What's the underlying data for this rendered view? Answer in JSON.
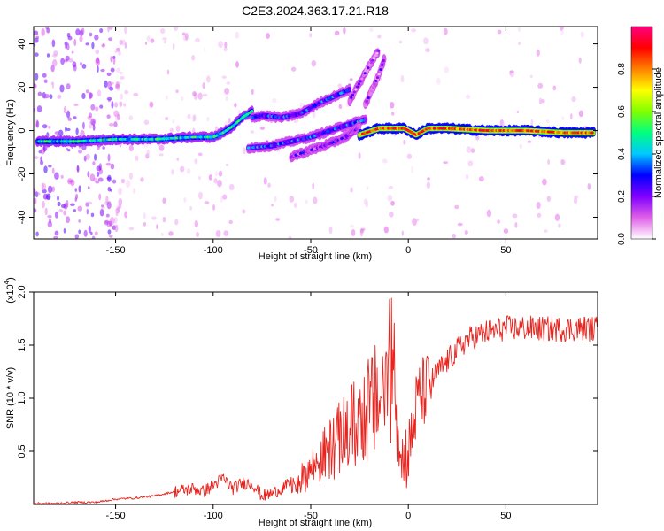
{
  "figure": {
    "title": "C2E3.2024.363.17.21.R18"
  },
  "chart_data": [
    {
      "type": "heatmap",
      "xlabel": "Height of straight line (km)",
      "ylabel": "Frequency (Hz)",
      "xlim": [
        -192,
        97
      ],
      "ylim": [
        -50,
        48
      ],
      "x_ticks": [
        -150,
        -100,
        -50,
        0,
        50
      ],
      "y_ticks": [
        -40,
        -20,
        0,
        20,
        40
      ],
      "colorbar": {
        "label": "Normalized spectral amplitude",
        "range": [
          0,
          1
        ],
        "ticks": [
          0.0,
          0.2,
          0.4,
          0.6,
          0.8
        ],
        "colormap": [
          "#ffffff",
          "#e060e8",
          "#8000ff",
          "#0000ff",
          "#00c8ff",
          "#00ff80",
          "#80ff00",
          "#ffff00",
          "#ff8000",
          "#ff0000",
          "#ff0080"
        ]
      },
      "ridges": [
        {
          "x": [
            -190,
            -170,
            -150,
            -130,
            -110,
            -100,
            -95,
            -90,
            -85,
            -80
          ],
          "y": [
            -5,
            -5,
            -4,
            -4,
            -3,
            -3,
            -1,
            2,
            6,
            9
          ],
          "amplitude": 0.45
        },
        {
          "x": [
            -80,
            -75,
            -65,
            -55,
            -45,
            -40,
            -35,
            -30
          ],
          "y": [
            6,
            7,
            6,
            8,
            13,
            15,
            17,
            19
          ],
          "amplitude": 0.3
        },
        {
          "x": [
            -82,
            -70,
            -60,
            -50,
            -40,
            -30,
            -22
          ],
          "y": [
            -8,
            -7,
            -5,
            -3,
            0,
            3,
            5
          ],
          "amplitude": 0.3
        },
        {
          "x": [
            -60,
            -50,
            -40,
            -30,
            -25
          ],
          "y": [
            -12,
            -9,
            -6,
            -2,
            2
          ],
          "amplitude": 0.2
        },
        {
          "x": [
            -30,
            -25,
            -20,
            -15
          ],
          "y": [
            14,
            22,
            30,
            37
          ],
          "amplitude": 0.15
        },
        {
          "x": [
            -22,
            -18,
            -15,
            -12
          ],
          "y": [
            12,
            20,
            26,
            34
          ],
          "amplitude": 0.15
        },
        {
          "x": [
            -25,
            -15,
            -8,
            -2,
            4,
            10,
            20,
            40,
            60,
            80,
            95
          ],
          "y": [
            -2,
            1,
            1,
            1,
            -2,
            1,
            1,
            0,
            0,
            -1,
            -1
          ],
          "amplitude": 0.85
        }
      ]
    },
    {
      "type": "line",
      "xlabel": "Height of straight line (km)",
      "ylabel": "SNR (10 * v/v)",
      "y_scale_note": "(x10^4)",
      "xlim": [
        -192,
        97
      ],
      "ylim": [
        0,
        2.0
      ],
      "x_ticks": [
        -150,
        -100,
        -50,
        0,
        50
      ],
      "y_ticks": [
        0.5,
        1.0,
        1.5,
        2.0
      ],
      "color": "#e8241e",
      "series": [
        {
          "x": [
            -192,
            -180,
            -170,
            -160,
            -150,
            -140,
            -130,
            -120,
            -110,
            -105,
            -100,
            -95,
            -90,
            -85,
            -80,
            -75,
            -70,
            -65,
            -60,
            -55,
            -50,
            -45,
            -40,
            -35,
            -30,
            -25,
            -20,
            -15,
            -10,
            -8,
            -5,
            -3,
            0,
            3,
            5,
            10,
            15,
            20,
            25,
            30,
            40,
            50,
            60,
            70,
            80,
            90,
            97
          ],
          "y": [
            0.01,
            0.01,
            0.02,
            0.02,
            0.05,
            0.06,
            0.08,
            0.12,
            0.15,
            0.12,
            0.18,
            0.25,
            0.15,
            0.2,
            0.2,
            0.08,
            0.1,
            0.15,
            0.2,
            0.25,
            0.35,
            0.45,
            0.55,
            0.65,
            0.75,
            0.85,
            0.95,
            1.05,
            1.25,
            1.5,
            0.6,
            0.5,
            0.45,
            0.8,
            1.0,
            1.1,
            1.25,
            1.35,
            1.45,
            1.55,
            1.62,
            1.66,
            1.66,
            1.65,
            1.65,
            1.66,
            1.65
          ]
        }
      ]
    }
  ]
}
